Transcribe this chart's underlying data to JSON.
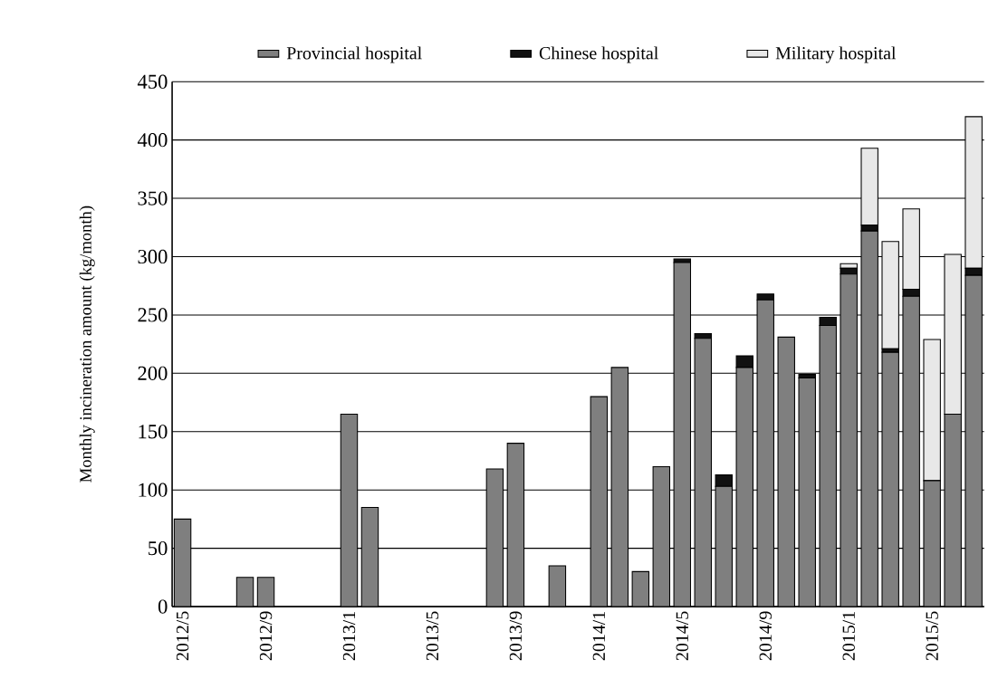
{
  "chart_data": {
    "type": "bar",
    "stacked": true,
    "ylabel": "Monthly incineration amount (kg/month)",
    "categories": [
      "2012/5",
      null,
      null,
      null,
      "2012/9",
      null,
      null,
      null,
      "2013/1",
      null,
      null,
      null,
      "2013/5",
      null,
      null,
      null,
      "2013/9",
      null,
      null,
      null,
      "2014/1",
      null,
      null,
      null,
      "2014/5",
      null,
      null,
      null,
      "2014/9",
      null,
      null,
      null,
      "2015/1",
      null,
      null,
      null,
      "2015/5",
      null,
      null
    ],
    "series": [
      {
        "name": "Provincial hospital",
        "color": "#7f7f7f",
        "values": [
          75,
          null,
          null,
          25,
          25,
          null,
          null,
          null,
          165,
          85,
          null,
          null,
          null,
          null,
          null,
          118,
          140,
          null,
          35,
          null,
          180,
          205,
          30,
          120,
          295,
          230,
          103,
          205,
          263,
          231,
          196,
          241,
          285,
          322,
          218,
          266,
          108,
          165,
          284
        ]
      },
      {
        "name": "Chinese hospital",
        "color": "#111111",
        "values": [
          null,
          null,
          null,
          null,
          null,
          null,
          null,
          null,
          null,
          null,
          null,
          null,
          null,
          null,
          null,
          null,
          null,
          null,
          null,
          null,
          null,
          null,
          null,
          null,
          3,
          4,
          10,
          10,
          5,
          null,
          3,
          7,
          5,
          5,
          3,
          6,
          null,
          null,
          6
        ]
      },
      {
        "name": "Military hospital",
        "color": "#e8e8e8",
        "values": [
          null,
          null,
          null,
          null,
          null,
          null,
          null,
          null,
          null,
          null,
          null,
          null,
          null,
          null,
          null,
          null,
          null,
          null,
          null,
          null,
          null,
          null,
          null,
          null,
          null,
          null,
          null,
          null,
          null,
          null,
          null,
          null,
          4,
          66,
          92,
          69,
          121,
          137,
          130
        ]
      }
    ],
    "ylim": [
      0,
      450
    ],
    "yticks": [
      0,
      50,
      100,
      150,
      200,
      250,
      300,
      350,
      400,
      450
    ],
    "grid": "y",
    "legend": "top"
  }
}
